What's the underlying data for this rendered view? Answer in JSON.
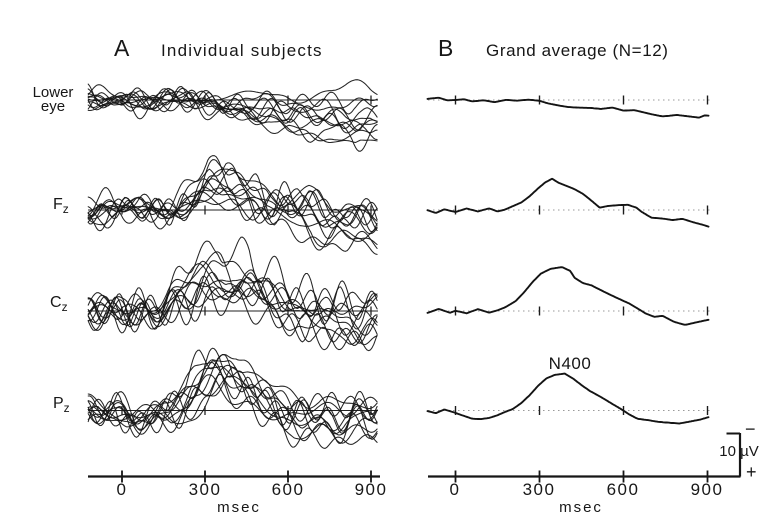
{
  "strings": {
    "panel_a_letter": "A",
    "panel_a_title": "Individual subjects",
    "panel_b_letter": "B",
    "panel_b_title": "Grand average (N=12)",
    "row_labels": {
      "eye_line1": "Lower",
      "eye_line2": "eye",
      "f": "F",
      "f_sub": "z",
      "c": "C",
      "c_sub": "z",
      "p": "P",
      "p_sub": "z"
    },
    "axis_ticks": [
      "0",
      "300",
      "600",
      "900"
    ],
    "axis_unit": "msec",
    "scale_bar_label": "10 µV",
    "scale_minus": "−",
    "scale_plus": "+",
    "peak_annotation": "N400"
  },
  "chart_data": {
    "type": "line",
    "panels": [
      {
        "id": "A",
        "label": "A",
        "title": "Individual subjects",
        "content": "12 overlaid individual-subject ERP traces per electrode site"
      },
      {
        "id": "B",
        "label": "B",
        "title": "Grand average (N=12)",
        "content": "grand-average ERP trace per electrode site"
      }
    ],
    "x": {
      "unit": "msec",
      "ticks": [
        0,
        300,
        600,
        900
      ],
      "range_ms": [
        -120,
        925
      ]
    },
    "y": {
      "unit": "µV",
      "scale_bar_uV": 10,
      "negative_up": true
    },
    "n_subjects": 12,
    "annotations": [
      {
        "text": "N400",
        "panel": "B",
        "channel": "Pz",
        "t_ms": 400
      }
    ],
    "channels": [
      {
        "id": "eye",
        "label": "Lower eye",
        "grand_average": [
          [
            -100,
            0
          ],
          [
            -60,
            -0.3
          ],
          [
            -30,
            0.2
          ],
          [
            0,
            0
          ],
          [
            30,
            -0.3
          ],
          [
            60,
            0.1
          ],
          [
            100,
            -0.2
          ],
          [
            140,
            0.3
          ],
          [
            180,
            -0.1
          ],
          [
            220,
            0.2
          ],
          [
            260,
            0
          ],
          [
            300,
            0.2
          ],
          [
            330,
            0.7
          ],
          [
            360,
            1.0
          ],
          [
            400,
            1.4
          ],
          [
            440,
            1.6
          ],
          [
            480,
            1.8
          ],
          [
            520,
            2.2
          ],
          [
            560,
            2.0
          ],
          [
            600,
            2.7
          ],
          [
            640,
            2.5
          ],
          [
            700,
            3.2
          ],
          [
            740,
            3.6
          ],
          [
            790,
            3.3
          ],
          [
            840,
            3.8
          ],
          [
            870,
            4.1
          ],
          [
            890,
            3.6
          ],
          [
            907,
            3.7
          ]
        ]
      },
      {
        "id": "Fz",
        "label": "Fz",
        "grand_average": [
          [
            -100,
            0
          ],
          [
            -70,
            0.5
          ],
          [
            -40,
            -0.4
          ],
          [
            0,
            0.2
          ],
          [
            40,
            -0.5
          ],
          [
            80,
            0.3
          ],
          [
            120,
            -0.3
          ],
          [
            150,
            0.4
          ],
          [
            175,
            0
          ],
          [
            205,
            -0.9
          ],
          [
            235,
            -1.8
          ],
          [
            265,
            -3.3
          ],
          [
            295,
            -5.1
          ],
          [
            320,
            -6.4
          ],
          [
            345,
            -7.2
          ],
          [
            365,
            -6.3
          ],
          [
            395,
            -5.4
          ],
          [
            425,
            -4.5
          ],
          [
            455,
            -3.4
          ],
          [
            490,
            -1.6
          ],
          [
            515,
            -0.3
          ],
          [
            545,
            -0.8
          ],
          [
            580,
            -1.1
          ],
          [
            615,
            -1.3
          ],
          [
            645,
            -0.7
          ],
          [
            665,
            0.3
          ],
          [
            700,
            1.7
          ],
          [
            740,
            2.0
          ],
          [
            775,
            2.4
          ],
          [
            810,
            2.1
          ],
          [
            850,
            2.8
          ],
          [
            880,
            3.2
          ],
          [
            905,
            3.6
          ]
        ]
      },
      {
        "id": "Cz",
        "label": "Cz",
        "grand_average": [
          [
            -100,
            0.2
          ],
          [
            -60,
            -0.6
          ],
          [
            -20,
            0.4
          ],
          [
            0,
            0
          ],
          [
            40,
            0.6
          ],
          [
            80,
            -0.4
          ],
          [
            120,
            0.3
          ],
          [
            150,
            -0.3
          ],
          [
            180,
            -1.1
          ],
          [
            215,
            -2.4
          ],
          [
            245,
            -4.3
          ],
          [
            275,
            -6.5
          ],
          [
            305,
            -8.3
          ],
          [
            340,
            -9.3
          ],
          [
            380,
            -9.7
          ],
          [
            410,
            -8.9
          ],
          [
            425,
            -7.4
          ],
          [
            455,
            -6.3
          ],
          [
            485,
            -5.9
          ],
          [
            515,
            -5.0
          ],
          [
            550,
            -3.9
          ],
          [
            585,
            -2.8
          ],
          [
            620,
            -1.7
          ],
          [
            650,
            -0.5
          ],
          [
            680,
            0.7
          ],
          [
            710,
            1.4
          ],
          [
            740,
            1.1
          ],
          [
            780,
            2.3
          ],
          [
            820,
            2.9
          ],
          [
            860,
            2.3
          ],
          [
            885,
            2.0
          ],
          [
            905,
            1.8
          ]
        ]
      },
      {
        "id": "Pz",
        "label": "Pz",
        "grand_average": [
          [
            -100,
            0.2
          ],
          [
            -70,
            0.7
          ],
          [
            -40,
            -0.2
          ],
          [
            0,
            0.5
          ],
          [
            30,
            1.1
          ],
          [
            60,
            1.7
          ],
          [
            90,
            1.8
          ],
          [
            120,
            1.6
          ],
          [
            150,
            1.1
          ],
          [
            180,
            0.4
          ],
          [
            205,
            -0.1
          ],
          [
            235,
            -1.4
          ],
          [
            265,
            -3.2
          ],
          [
            295,
            -5.4
          ],
          [
            325,
            -7.2
          ],
          [
            355,
            -8.1
          ],
          [
            390,
            -8.5
          ],
          [
            420,
            -7.4
          ],
          [
            450,
            -5.9
          ],
          [
            480,
            -4.5
          ],
          [
            520,
            -3.0
          ],
          [
            560,
            -1.4
          ],
          [
            595,
            -0.1
          ],
          [
            620,
            0.9
          ],
          [
            650,
            1.8
          ],
          [
            690,
            2.0
          ],
          [
            725,
            2.3
          ],
          [
            760,
            2.5
          ],
          [
            800,
            2.8
          ],
          [
            840,
            2.5
          ],
          [
            875,
            2.2
          ],
          [
            905,
            1.7
          ]
        ]
      }
    ]
  }
}
